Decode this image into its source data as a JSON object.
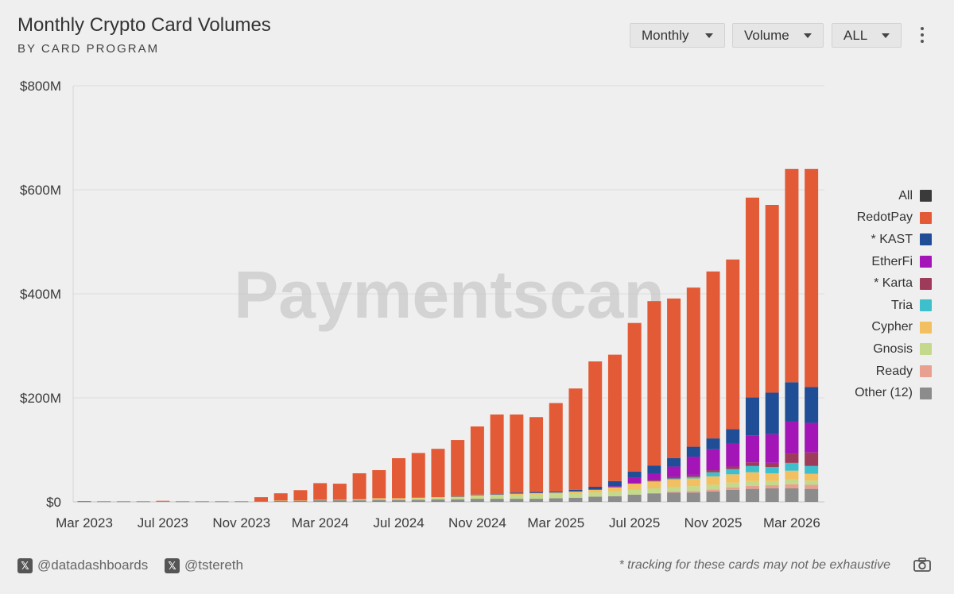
{
  "header": {
    "title": "Monthly Crypto Card Volumes",
    "subtitle": "BY CARD PROGRAM"
  },
  "controls": {
    "period": "Monthly",
    "metric": "Volume",
    "filter": "ALL",
    "more_icon": "kebab-menu-icon"
  },
  "watermark": "Paymentscan",
  "footer": {
    "handle1": "@datadashboards",
    "handle2": "@tstereth",
    "note": "* tracking for these cards may not be exhaustive",
    "social_icon": "x-logo-icon",
    "screenshot_icon": "camera-icon"
  },
  "chart_data": {
    "type": "bar",
    "stacked": true,
    "title": "Monthly Crypto Card Volumes",
    "subtitle": "BY CARD PROGRAM",
    "xlabel": "",
    "ylabel": "",
    "ylim": [
      0,
      800
    ],
    "y_ticks": [
      0,
      200,
      400,
      600,
      800
    ],
    "y_tick_labels": [
      "$0",
      "$200M",
      "$400M",
      "$600M",
      "$800M"
    ],
    "x_tick_labels": [
      "Mar 2023",
      "Jul 2023",
      "Nov 2023",
      "Mar 2024",
      "Jul 2024",
      "Nov 2024",
      "Mar 2025",
      "Jul 2025",
      "Nov 2025",
      "Mar 2026"
    ],
    "legend_position": "right",
    "grid": true,
    "categories": [
      "Mar 2023",
      "Apr 2023",
      "May 2023",
      "Jun 2023",
      "Jul 2023",
      "Aug 2023",
      "Sep 2023",
      "Oct 2023",
      "Nov 2023",
      "Dec 2023",
      "Jan 2024",
      "Feb 2024",
      "Mar 2024",
      "Apr 2024",
      "May 2024",
      "Jun 2024",
      "Jul 2024",
      "Aug 2024",
      "Sep 2024",
      "Oct 2024",
      "Nov 2024",
      "Dec 2024",
      "Jan 2025",
      "Feb 2025",
      "Mar 2025",
      "Apr 2025",
      "May 2025",
      "Jun 2025",
      "Jul 2025",
      "Aug 2025",
      "Sep 2025",
      "Oct 2025",
      "Nov 2025",
      "Dec 2025",
      "Jan 2026",
      "Feb 2026",
      "Mar 2026",
      "Apr 2026"
    ],
    "series": [
      {
        "name": "Other (12)",
        "color": "#8c8c8c",
        "values": [
          0.5,
          0.5,
          0.5,
          0.5,
          1,
          0.5,
          0.5,
          0.5,
          0.5,
          1,
          2,
          2,
          3,
          3,
          3,
          4,
          4,
          4,
          5,
          5,
          6,
          6,
          6,
          6,
          7,
          8,
          10,
          11,
          14,
          16,
          18,
          18,
          20,
          23,
          25,
          26,
          26,
          25
        ]
      },
      {
        "name": "Ready",
        "color": "#e8a090",
        "values": [
          0,
          0,
          0,
          0,
          0,
          0,
          0,
          0,
          0,
          0,
          0,
          0,
          0,
          0,
          0,
          0,
          0,
          0,
          0,
          0,
          0,
          0,
          0,
          0,
          0,
          0,
          0,
          0,
          0,
          1,
          2,
          3,
          4,
          5,
          6,
          6,
          8,
          8
        ]
      },
      {
        "name": "Gnosis",
        "color": "#c4d98c",
        "values": [
          0,
          0,
          0,
          0,
          0,
          0,
          0,
          0,
          0,
          0,
          0.5,
          0.5,
          1,
          1,
          2,
          2,
          2,
          3,
          3,
          4,
          5,
          6,
          7,
          8,
          8,
          8,
          8,
          9,
          9,
          9,
          9,
          9,
          9,
          9,
          9,
          8,
          9,
          8
        ]
      },
      {
        "name": "Cypher",
        "color": "#f2c060",
        "values": [
          0,
          0,
          0,
          0,
          0,
          0,
          0,
          0,
          0,
          0,
          0,
          0,
          0,
          0,
          0,
          1,
          1,
          1,
          1,
          1,
          2,
          2,
          3,
          3,
          3,
          4,
          5,
          8,
          12,
          13,
          14,
          15,
          16,
          16,
          17,
          15,
          17,
          13
        ]
      },
      {
        "name": "Tria",
        "color": "#3ebfcc",
        "values": [
          0,
          0,
          0,
          0,
          0,
          0,
          0,
          0,
          0,
          0,
          0,
          0,
          0,
          0,
          0,
          0,
          0,
          0,
          0,
          0,
          0,
          0,
          0,
          0,
          0,
          0,
          0,
          0,
          0,
          1,
          2,
          3,
          8,
          10,
          12,
          12,
          15,
          15
        ]
      },
      {
        "name": "* Karta",
        "color": "#9e3a5a",
        "values": [
          0,
          0,
          0,
          0,
          0,
          0,
          0,
          0,
          0,
          0,
          0,
          0,
          0,
          0,
          0,
          0,
          0,
          0,
          0,
          0,
          0,
          0,
          0,
          0,
          0,
          0,
          0,
          0,
          1,
          2,
          3,
          4,
          4,
          5,
          7,
          8,
          18,
          26
        ]
      },
      {
        "name": "EtherFi",
        "color": "#a415b8",
        "values": [
          0,
          0,
          0,
          0,
          0,
          0,
          0,
          0,
          0,
          0,
          0,
          0,
          0,
          0,
          0,
          0,
          0,
          0,
          0,
          0,
          0,
          0,
          0,
          0,
          0,
          0,
          1,
          2,
          10,
          13,
          20,
          35,
          40,
          45,
          52,
          55,
          62,
          57
        ]
      },
      {
        "name": "* KAST",
        "color": "#1f4e96",
        "values": [
          0,
          0,
          0,
          0,
          0,
          0,
          0,
          0,
          0,
          0,
          0,
          0,
          0,
          0,
          0,
          0,
          0,
          0,
          0,
          1,
          1,
          1,
          2,
          2,
          2,
          3,
          5,
          10,
          12,
          15,
          16,
          19,
          21,
          27,
          73,
          80,
          75,
          69
        ]
      },
      {
        "name": "RedotPay",
        "color": "#e35a36",
        "values": [
          1,
          0.5,
          0.5,
          0.5,
          1,
          0.5,
          0.5,
          0.5,
          0.5,
          8,
          14,
          20,
          32,
          31,
          50,
          54,
          77,
          86,
          93,
          108,
          131,
          153,
          150,
          144,
          170,
          195,
          241,
          243,
          286,
          316,
          307,
          306,
          321,
          326,
          384,
          361,
          410,
          419
        ]
      },
      {
        "name": "All",
        "color": "#3a3a3a",
        "values": [
          0,
          0,
          0,
          0,
          0,
          0,
          0,
          0,
          0,
          0,
          0,
          0,
          0,
          0,
          0,
          0,
          0,
          0,
          0,
          0,
          0,
          0,
          0,
          0,
          0,
          0,
          0,
          0,
          0,
          0,
          0,
          0,
          0,
          0,
          0,
          0,
          0,
          0
        ]
      }
    ],
    "legend_order": [
      "All",
      "RedotPay",
      "* KAST",
      "EtherFi",
      "* Karta",
      "Tria",
      "Cypher",
      "Gnosis",
      "Ready",
      "Other (12)"
    ]
  }
}
